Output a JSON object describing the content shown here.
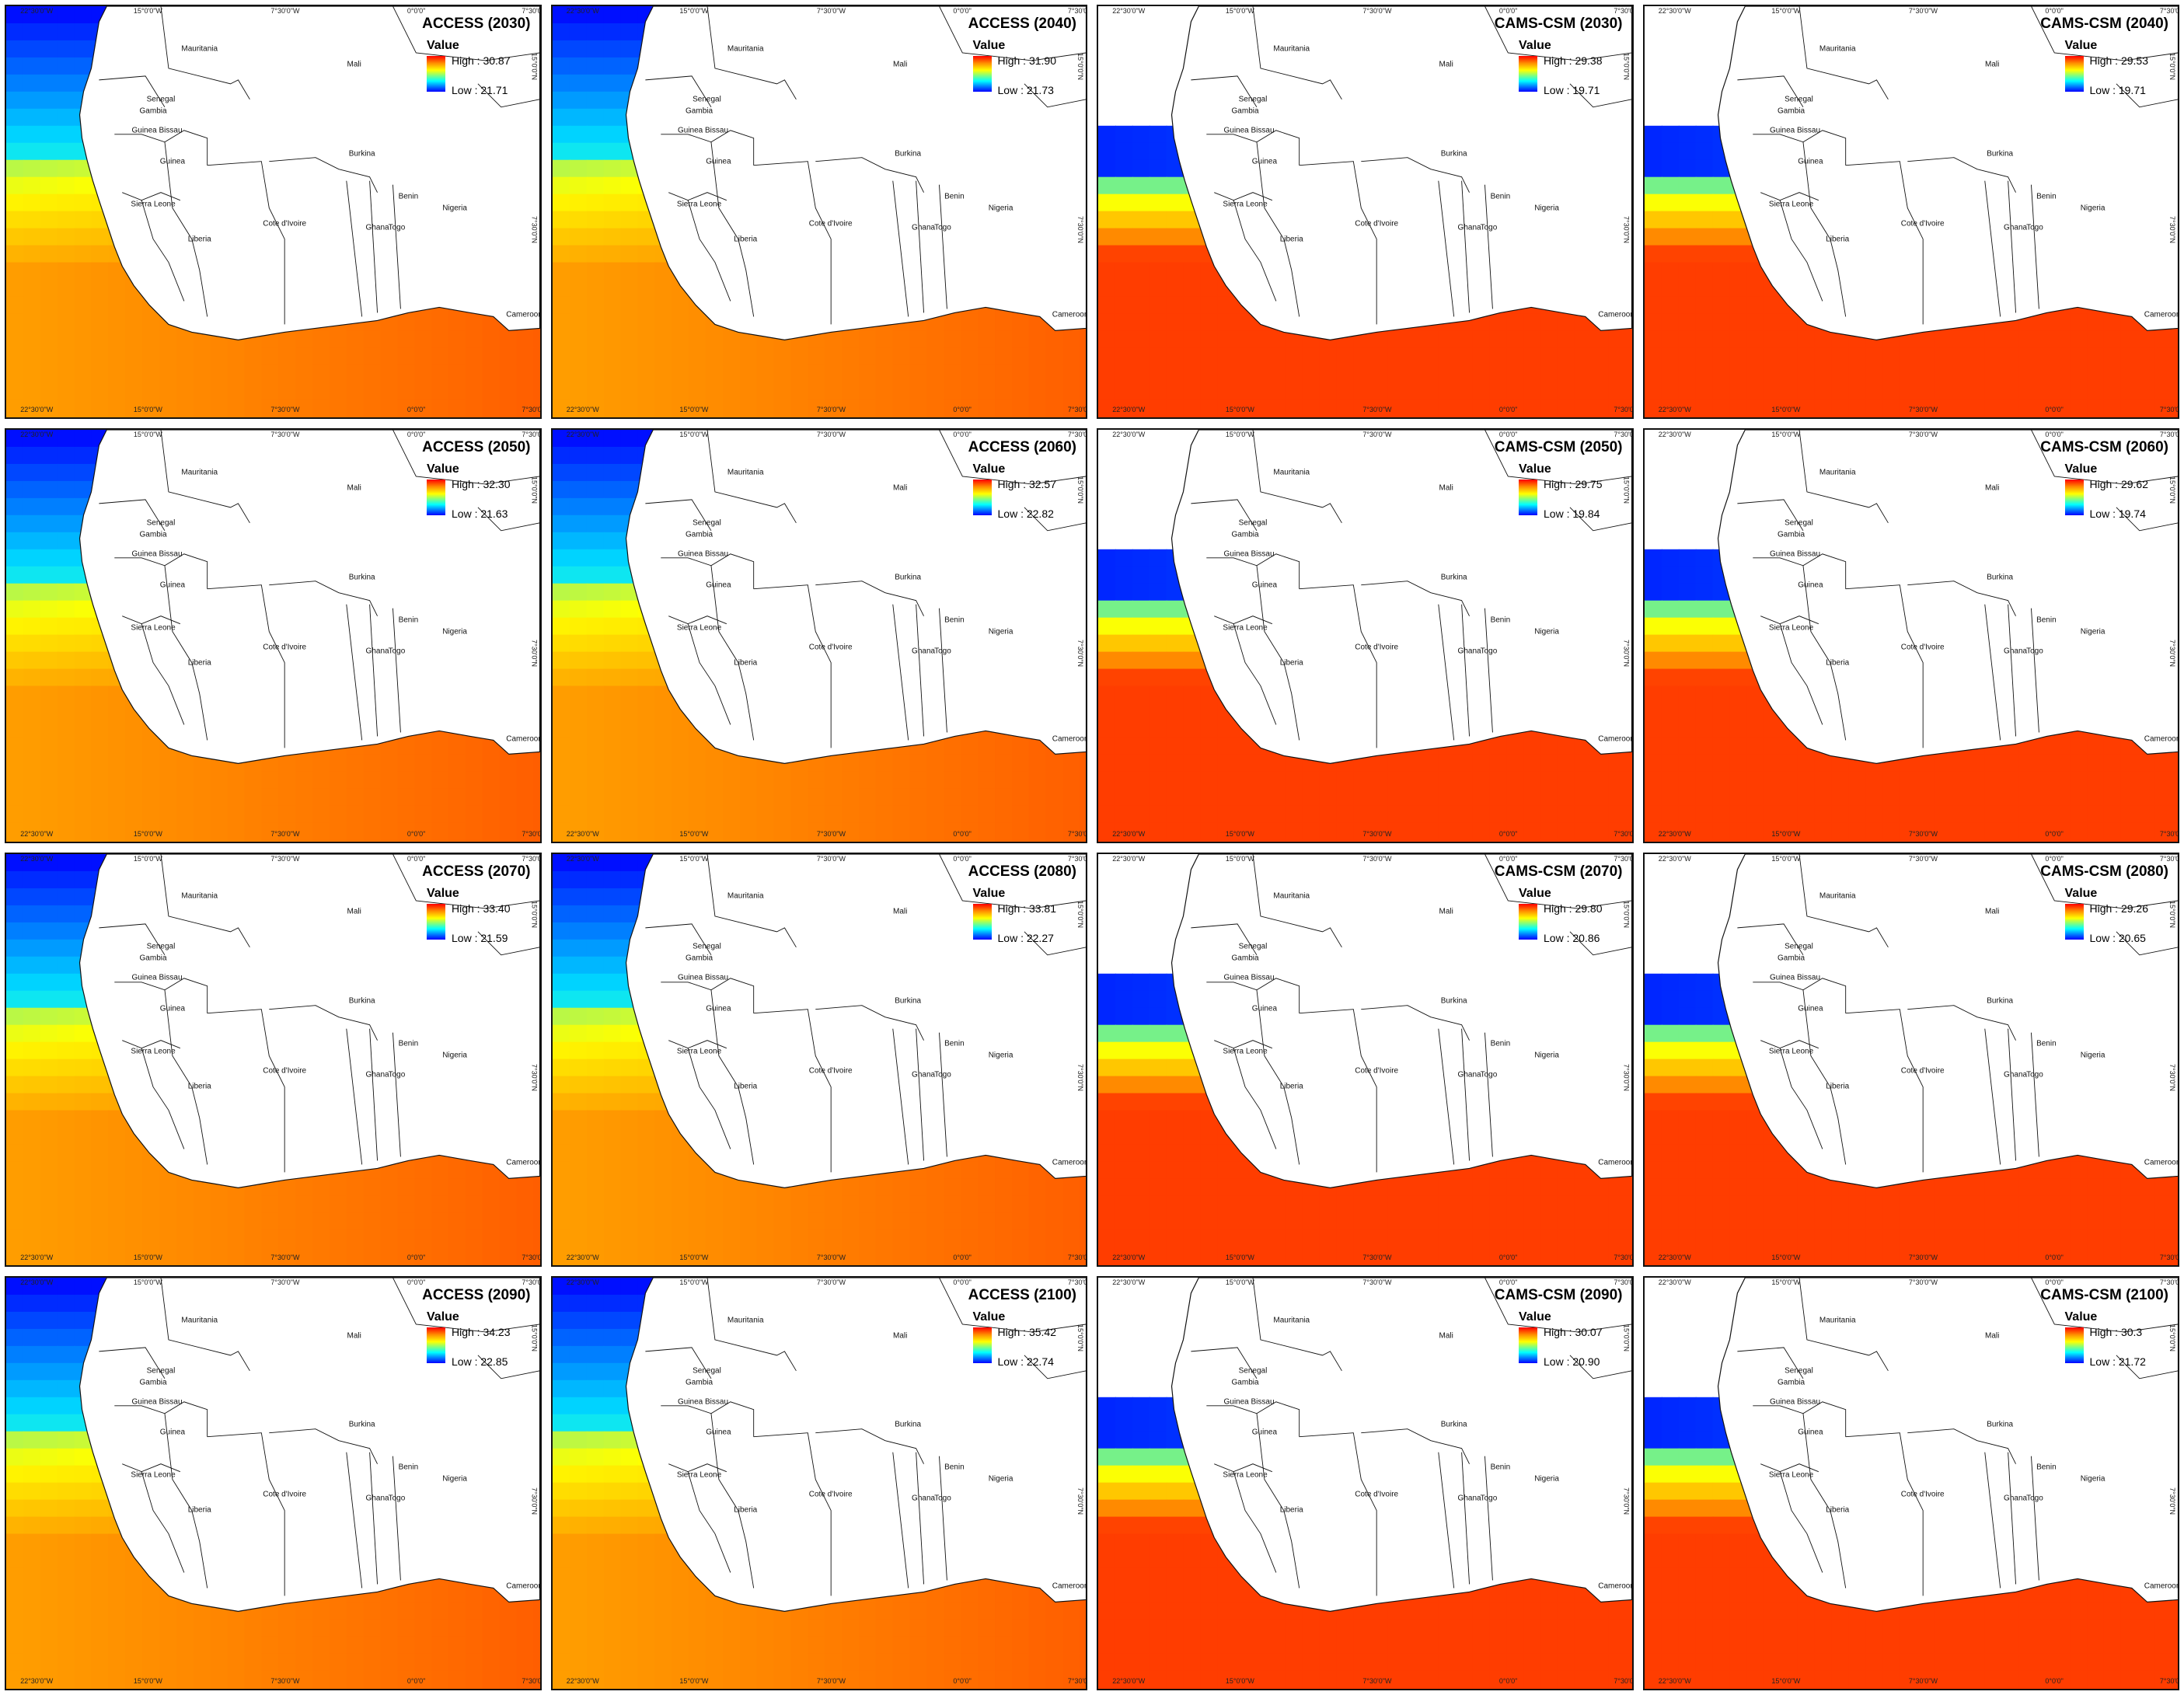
{
  "ticks_top": [
    "22°30'0\"W",
    "15°0'0\"W",
    "7°30'0\"W",
    "0°0'0\"",
    "7°30'0\"E"
  ],
  "ticks_bottom": [
    "22°30'0\"W",
    "15°0'0\"W",
    "7°30'0\"W",
    "0°0'0\"",
    "7°30'0\"E"
  ],
  "lat_labels": [
    "15°0'0\"N",
    "7°30'0\"N"
  ],
  "legend_title": "Value",
  "countries": [
    "Mauritania",
    "Mali",
    "Senegal",
    "Gambia",
    "Guinea Bissau",
    "Guinea",
    "Sierra Leone",
    "Liberia",
    "Cote d'Ivoire",
    "Burkina",
    "Ghana",
    "Togo",
    "Benin",
    "Nigeria",
    "Cameroon"
  ],
  "panels": [
    {
      "title": "ACCESS (2030)",
      "high": "High : 30.87",
      "low": "Low : 21.71",
      "model": "access"
    },
    {
      "title": "ACCESS (2040)",
      "high": "High : 31.90",
      "low": "Low : 21.73",
      "model": "access"
    },
    {
      "title": "CAMS-CSM (2030)",
      "high": "High : 29.38",
      "low": "Low : 19.71",
      "model": "cams"
    },
    {
      "title": "CAMS-CSM (2040)",
      "high": "High : 29.53",
      "low": "Low : 19.71",
      "model": "cams"
    },
    {
      "title": "ACCESS (2050)",
      "high": "High : 32.30",
      "low": "Low : 21.63",
      "model": "access"
    },
    {
      "title": "ACCESS (2060)",
      "high": "High : 32.57",
      "low": "Low : 22.82",
      "model": "access"
    },
    {
      "title": "CAMS-CSM (2050)",
      "high": "High : 29.75",
      "low": "Low : 19.84",
      "model": "cams"
    },
    {
      "title": "CAMS-CSM (2060)",
      "high": "High : 29.62",
      "low": "Low : 19.74",
      "model": "cams"
    },
    {
      "title": "ACCESS (2070)",
      "high": "High : 33.40",
      "low": "Low : 21.59",
      "model": "access"
    },
    {
      "title": "ACCESS (2080)",
      "high": "High : 33.81",
      "low": "Low : 22.27",
      "model": "access"
    },
    {
      "title": "CAMS-CSM (2070)",
      "high": "High : 29.80",
      "low": "Low : 20.86",
      "model": "cams"
    },
    {
      "title": "CAMS-CSM (2080)",
      "high": "High : 29.26",
      "low": "Low : 20.65",
      "model": "cams"
    },
    {
      "title": "ACCESS (2090)",
      "high": "High : 34.23",
      "low": "Low : 22.85",
      "model": "access"
    },
    {
      "title": "ACCESS (2100)",
      "high": "High : 35.42",
      "low": "Low : 22.74",
      "model": "access"
    },
    {
      "title": "CAMS-CSM (2090)",
      "high": "High : 30.07",
      "low": "Low : 20.90",
      "model": "cams"
    },
    {
      "title": "CAMS-CSM (2100)",
      "high": "High : 30.3",
      "low": "Low : 21.72",
      "model": "cams"
    }
  ],
  "colors": {
    "blue": "#0000ff",
    "cyan": "#00e5ff",
    "yellow": "#ffff00",
    "orange": "#ff9900",
    "red": "#ff2200",
    "land": "#ffffff",
    "border": "#111111"
  }
}
